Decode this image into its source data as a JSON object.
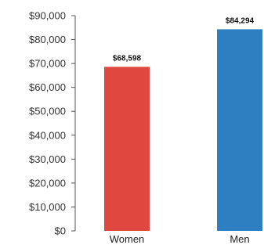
{
  "chart_data": {
    "type": "bar",
    "categories": [
      "Women",
      "Men"
    ],
    "values": [
      68598,
      84294
    ],
    "data_labels": [
      "$68,598",
      "$84,294"
    ],
    "colors": [
      "#e0483f",
      "#2e7fc1"
    ],
    "ylim": [
      0,
      90000
    ],
    "y_ticks": [
      0,
      10000,
      20000,
      30000,
      40000,
      50000,
      60000,
      70000,
      80000,
      90000
    ],
    "y_tick_labels": [
      "$0",
      "$10,000",
      "$20,000",
      "$30,000",
      "$40,000",
      "$50,000",
      "$60,000",
      "$70,000",
      "$80,000",
      "$90,000"
    ],
    "grid": false,
    "title": "",
    "xlabel": "",
    "ylabel": ""
  }
}
